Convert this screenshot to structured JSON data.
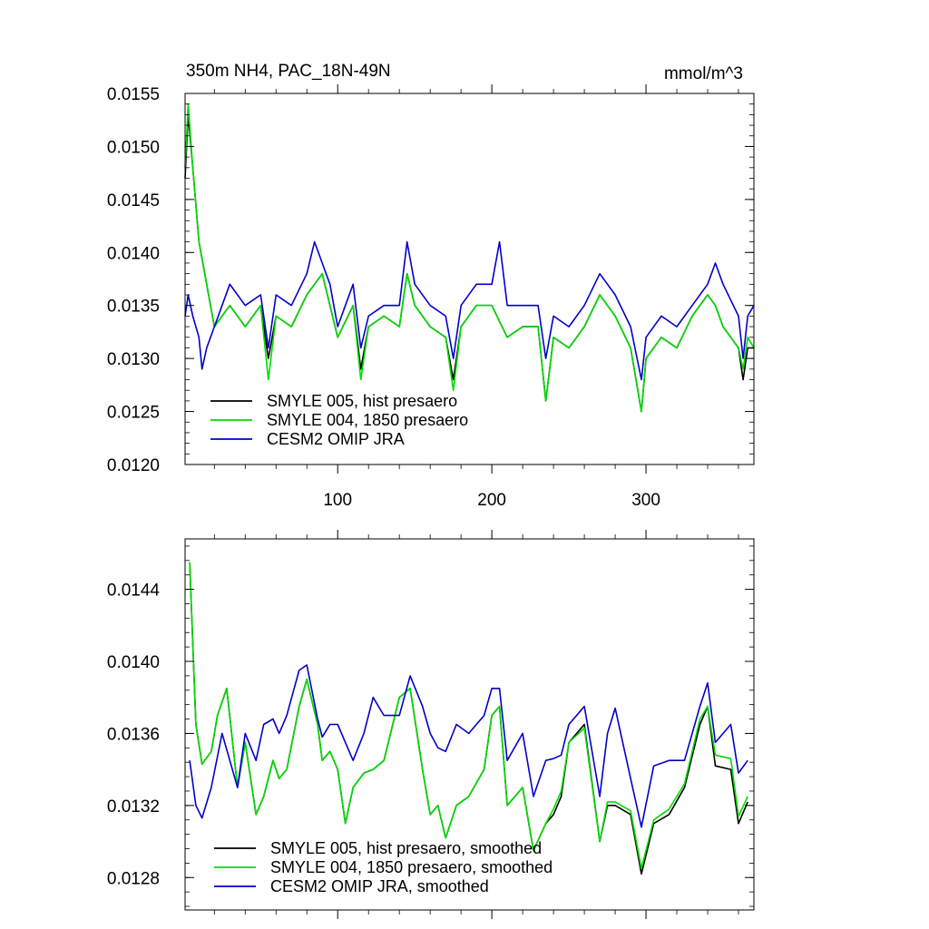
{
  "chart_data": [
    {
      "type": "line",
      "title": "350m NH4, PAC_18N-49N",
      "units": "mmol/m^3",
      "xlim": [
        1,
        370
      ],
      "ylim": [
        0.012,
        0.0155
      ],
      "x_ticks": [
        100,
        200,
        300
      ],
      "x_tick_labels": [
        "100",
        "200",
        "300"
      ],
      "y_ticks": [
        0.012,
        0.0125,
        0.013,
        0.0135,
        0.014,
        0.0145,
        0.015,
        0.0155
      ],
      "y_tick_labels": [
        "0.0120",
        "0.0125",
        "0.0130",
        "0.0135",
        "0.0140",
        "0.0145",
        "0.0150",
        "0.0155"
      ],
      "legend_position": "bottom-left",
      "series": [
        {
          "name": "SMYLE 005, hist presaero",
          "color": "#000000",
          "x": [
            1,
            3,
            6,
            10,
            15,
            20,
            30,
            40,
            50,
            55,
            60,
            70,
            80,
            90,
            100,
            110,
            115,
            120,
            130,
            140,
            145,
            150,
            160,
            170,
            175,
            180,
            190,
            200,
            210,
            220,
            230,
            235,
            240,
            250,
            260,
            270,
            275,
            280,
            290,
            297,
            300,
            310,
            320,
            330,
            340,
            345,
            350,
            360,
            363,
            366,
            370
          ],
          "values": [
            0.0147,
            0.0153,
            0.0148,
            0.0141,
            0.0137,
            0.0133,
            0.0135,
            0.0133,
            0.0135,
            0.013,
            0.0134,
            0.0133,
            0.0136,
            0.0138,
            0.0132,
            0.0135,
            0.0129,
            0.0133,
            0.0134,
            0.0133,
            0.0138,
            0.0135,
            0.0133,
            0.0132,
            0.0128,
            0.0133,
            0.0135,
            0.0135,
            0.0132,
            0.0133,
            0.0133,
            0.0126,
            0.0132,
            0.0131,
            0.0133,
            0.0136,
            0.0135,
            0.0134,
            0.0131,
            0.0125,
            0.013,
            0.0132,
            0.0131,
            0.0134,
            0.0136,
            0.0135,
            0.0133,
            0.0131,
            0.0128,
            0.0131,
            0.0131
          ]
        },
        {
          "name": "SMYLE 004, 1850 presaero",
          "color": "#00dd00",
          "x": [
            1,
            3,
            6,
            10,
            15,
            20,
            30,
            40,
            50,
            55,
            60,
            70,
            80,
            90,
            100,
            110,
            115,
            120,
            130,
            140,
            145,
            150,
            160,
            170,
            175,
            180,
            190,
            200,
            210,
            220,
            230,
            235,
            240,
            250,
            260,
            270,
            275,
            280,
            290,
            297,
            300,
            310,
            320,
            330,
            340,
            345,
            350,
            360,
            363,
            366,
            370
          ],
          "values": [
            0.0148,
            0.0154,
            0.0148,
            0.0141,
            0.0137,
            0.0133,
            0.0135,
            0.0133,
            0.0135,
            0.0128,
            0.0134,
            0.0133,
            0.0136,
            0.0138,
            0.0132,
            0.0135,
            0.0128,
            0.0133,
            0.0134,
            0.0133,
            0.0138,
            0.0135,
            0.0133,
            0.0132,
            0.0127,
            0.0133,
            0.0135,
            0.0135,
            0.0132,
            0.0133,
            0.0133,
            0.0126,
            0.0132,
            0.0131,
            0.0133,
            0.0136,
            0.0135,
            0.0134,
            0.0131,
            0.0125,
            0.013,
            0.0132,
            0.0131,
            0.0134,
            0.0136,
            0.0135,
            0.0133,
            0.0131,
            0.0129,
            0.0132,
            0.0131
          ]
        },
        {
          "name": "CESM2 OMIP JRA",
          "color": "#0000cc",
          "x": [
            1,
            3,
            6,
            10,
            12,
            15,
            20,
            25,
            30,
            40,
            50,
            55,
            60,
            70,
            80,
            85,
            90,
            95,
            100,
            110,
            115,
            120,
            130,
            140,
            145,
            150,
            160,
            170,
            175,
            180,
            190,
            200,
            205,
            210,
            220,
            230,
            235,
            240,
            250,
            260,
            270,
            275,
            280,
            290,
            297,
            300,
            310,
            320,
            330,
            340,
            345,
            350,
            360,
            363,
            366,
            370
          ],
          "values": [
            0.0134,
            0.0136,
            0.0134,
            0.0132,
            0.0129,
            0.0131,
            0.0133,
            0.0135,
            0.0137,
            0.0135,
            0.0136,
            0.0131,
            0.0136,
            0.0135,
            0.0138,
            0.0141,
            0.0139,
            0.0137,
            0.0133,
            0.0137,
            0.0131,
            0.0134,
            0.0135,
            0.0135,
            0.0141,
            0.0137,
            0.0135,
            0.0134,
            0.013,
            0.0135,
            0.0137,
            0.0137,
            0.0141,
            0.0135,
            0.0135,
            0.0135,
            0.013,
            0.0134,
            0.0133,
            0.0135,
            0.0138,
            0.0137,
            0.0136,
            0.0133,
            0.0128,
            0.0132,
            0.0134,
            0.0133,
            0.0135,
            0.0137,
            0.0139,
            0.0137,
            0.0134,
            0.013,
            0.0134,
            0.0135
          ]
        }
      ]
    },
    {
      "type": "line",
      "title": "",
      "xlim": [
        1,
        370
      ],
      "ylim": [
        0.01262,
        0.01468
      ],
      "x_ticks": [
        100,
        200,
        300
      ],
      "x_tick_labels": [
        "",
        "",
        ""
      ],
      "y_ticks": [
        0.0128,
        0.0132,
        0.0136,
        0.014,
        0.0144
      ],
      "y_tick_labels": [
        "0.0128",
        "0.0132",
        "0.0136",
        "0.0140",
        "0.0144"
      ],
      "legend_position": "bottom-left",
      "series": [
        {
          "name": "SMYLE 005, hist presaero, smoothed",
          "color": "#000000",
          "x": [
            4,
            8,
            12,
            18,
            22,
            28,
            35,
            40,
            47,
            52,
            58,
            62,
            67,
            75,
            80,
            87,
            90,
            95,
            100,
            105,
            110,
            117,
            123,
            130,
            140,
            147,
            155,
            160,
            165,
            170,
            177,
            185,
            195,
            200,
            205,
            210,
            220,
            227,
            235,
            240,
            245,
            250,
            260,
            270,
            275,
            280,
            290,
            297,
            305,
            315,
            325,
            335,
            340,
            345,
            355,
            360,
            366
          ],
          "values": [
            0.01455,
            0.01365,
            0.01343,
            0.0135,
            0.0137,
            0.01385,
            0.0133,
            0.01355,
            0.01315,
            0.01325,
            0.01345,
            0.01335,
            0.0134,
            0.01375,
            0.0139,
            0.01365,
            0.01345,
            0.0135,
            0.0134,
            0.0131,
            0.0133,
            0.01338,
            0.0134,
            0.01345,
            0.0138,
            0.01385,
            0.0134,
            0.01315,
            0.0132,
            0.01302,
            0.0132,
            0.01325,
            0.0134,
            0.0137,
            0.01375,
            0.0132,
            0.0133,
            0.01295,
            0.0131,
            0.01315,
            0.01325,
            0.01355,
            0.01365,
            0.013,
            0.0132,
            0.0132,
            0.01315,
            0.01282,
            0.0131,
            0.01315,
            0.0133,
            0.01365,
            0.01375,
            0.01342,
            0.0134,
            0.0131,
            0.01322
          ]
        },
        {
          "name": "SMYLE 004, 1850 presaero, smoothed",
          "color": "#00dd00",
          "x": [
            4,
            8,
            12,
            18,
            22,
            28,
            35,
            40,
            47,
            52,
            58,
            62,
            67,
            75,
            80,
            87,
            90,
            95,
            100,
            105,
            110,
            117,
            123,
            130,
            140,
            147,
            155,
            160,
            165,
            170,
            177,
            185,
            195,
            200,
            205,
            210,
            220,
            227,
            235,
            240,
            245,
            250,
            260,
            270,
            275,
            280,
            290,
            297,
            305,
            315,
            325,
            335,
            340,
            345,
            355,
            360,
            366
          ],
          "values": [
            0.01455,
            0.01365,
            0.01343,
            0.0135,
            0.0137,
            0.01385,
            0.0133,
            0.01355,
            0.01315,
            0.01325,
            0.01345,
            0.01335,
            0.0134,
            0.01375,
            0.0139,
            0.01365,
            0.01345,
            0.0135,
            0.0134,
            0.0131,
            0.0133,
            0.01338,
            0.0134,
            0.01345,
            0.0138,
            0.01385,
            0.0134,
            0.01315,
            0.0132,
            0.01302,
            0.0132,
            0.01325,
            0.0134,
            0.0137,
            0.01375,
            0.0132,
            0.0133,
            0.01295,
            0.0131,
            0.01318,
            0.01328,
            0.01355,
            0.01363,
            0.013,
            0.01322,
            0.01322,
            0.01317,
            0.01285,
            0.01312,
            0.01318,
            0.01332,
            0.01368,
            0.01375,
            0.01348,
            0.01346,
            0.01314,
            0.01325
          ]
        },
        {
          "name": "CESM2 OMIP JRA, smoothed",
          "color": "#0000cc",
          "x": [
            4,
            8,
            12,
            18,
            25,
            30,
            35,
            40,
            47,
            52,
            58,
            62,
            67,
            75,
            80,
            87,
            90,
            95,
            100,
            110,
            117,
            123,
            130,
            140,
            147,
            155,
            160,
            165,
            170,
            177,
            185,
            195,
            200,
            205,
            210,
            220,
            227,
            235,
            240,
            245,
            250,
            260,
            270,
            275,
            280,
            290,
            297,
            305,
            315,
            325,
            335,
            340,
            345,
            355,
            360,
            366
          ],
          "values": [
            0.01345,
            0.0132,
            0.01313,
            0.0133,
            0.0136,
            0.01345,
            0.0133,
            0.0136,
            0.01345,
            0.01365,
            0.01368,
            0.0136,
            0.0137,
            0.01395,
            0.01398,
            0.01368,
            0.01358,
            0.01365,
            0.01365,
            0.01345,
            0.0136,
            0.0138,
            0.0137,
            0.0137,
            0.01392,
            0.01375,
            0.0136,
            0.01352,
            0.0135,
            0.01365,
            0.0136,
            0.0137,
            0.01385,
            0.01385,
            0.01345,
            0.0136,
            0.01325,
            0.01345,
            0.01346,
            0.01348,
            0.01365,
            0.01375,
            0.01325,
            0.0136,
            0.01374,
            0.01335,
            0.01308,
            0.01342,
            0.01345,
            0.01345,
            0.01375,
            0.01388,
            0.01355,
            0.01365,
            0.01338,
            0.01345
          ]
        }
      ]
    }
  ]
}
